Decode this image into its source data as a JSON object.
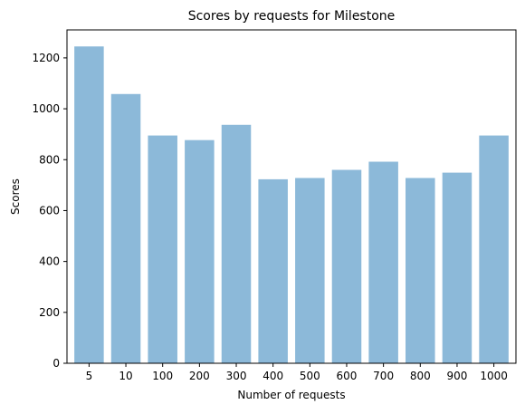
{
  "chart_data": {
    "type": "bar",
    "title": "Scores by requests for Milestone",
    "xlabel": "Number of requests",
    "ylabel": "Scores",
    "categories": [
      "5",
      "10",
      "100",
      "200",
      "300",
      "400",
      "500",
      "600",
      "700",
      "800",
      "900",
      "1000"
    ],
    "values": [
      1245,
      1058,
      895,
      877,
      937,
      723,
      728,
      760,
      792,
      728,
      749,
      895
    ],
    "ylim": [
      0,
      1310
    ],
    "yticks": [
      0,
      200,
      400,
      600,
      800,
      1000,
      1200
    ],
    "grid": false,
    "legend": "none",
    "bar_color": "#8cb9d9"
  }
}
